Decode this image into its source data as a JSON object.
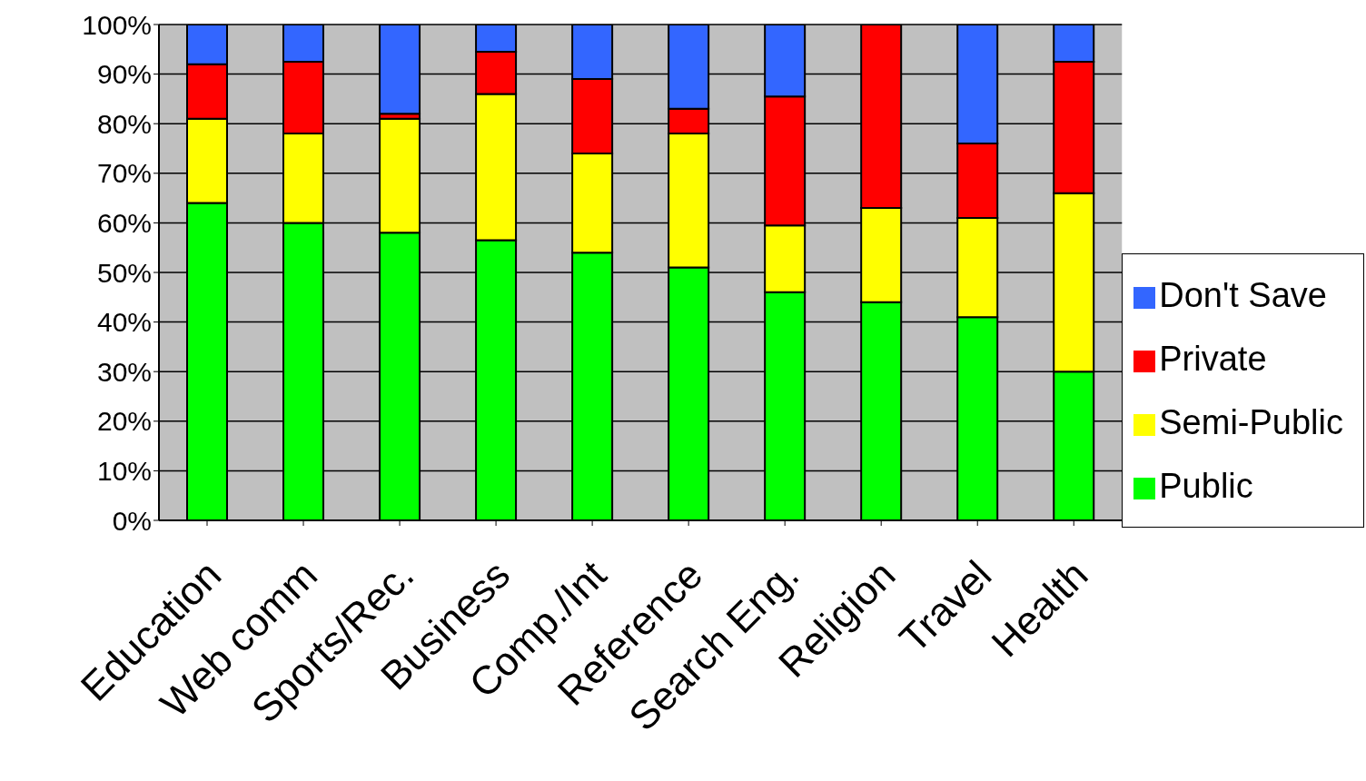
{
  "chart_data": {
    "type": "bar",
    "stacked": true,
    "categories": [
      "Education",
      "Web comm",
      "Sports/Rec.",
      "Business",
      "Comp./Int",
      "Reference",
      "Search Eng.",
      "Religion",
      "Travel",
      "Health"
    ],
    "series": [
      {
        "name": "Public",
        "color": "#00ff00",
        "values": [
          64,
          60,
          58,
          56.5,
          54,
          51,
          46,
          44,
          41,
          30
        ]
      },
      {
        "name": "Semi-Public",
        "color": "#ffff00",
        "values": [
          17,
          18,
          23,
          29.5,
          20,
          27,
          13.5,
          19,
          20,
          36
        ]
      },
      {
        "name": "Private",
        "color": "#ff0000",
        "values": [
          11,
          14.5,
          1,
          8.5,
          15,
          5,
          26,
          37,
          15,
          26.5
        ]
      },
      {
        "name": "Don't Save",
        "color": "#3366ff",
        "values": [
          8,
          7.5,
          18,
          5.5,
          11,
          17,
          14.5,
          0,
          24,
          7.5
        ]
      }
    ],
    "ylim": [
      0,
      100
    ],
    "yticks": [
      {
        "value": 0,
        "label": "0%"
      },
      {
        "value": 10,
        "label": "10%"
      },
      {
        "value": 20,
        "label": "20%"
      },
      {
        "value": 30,
        "label": "30%"
      },
      {
        "value": 40,
        "label": "40%"
      },
      {
        "value": 50,
        "label": "50%"
      },
      {
        "value": 60,
        "label": "60%"
      },
      {
        "value": 70,
        "label": "70%"
      },
      {
        "value": 80,
        "label": "80%"
      },
      {
        "value": 90,
        "label": "90%"
      },
      {
        "value": 100,
        "label": "100%"
      }
    ],
    "grid": "y",
    "legend": "right"
  }
}
